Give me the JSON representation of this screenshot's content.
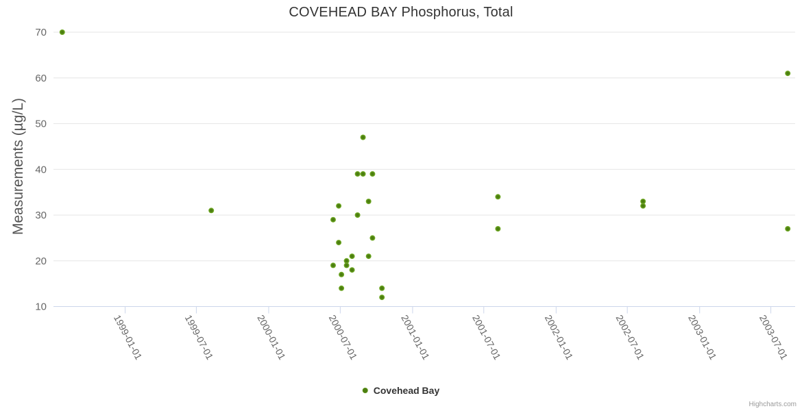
{
  "credits": {
    "label": "Highcharts.com"
  },
  "legend": {
    "label": "Covehead Bay"
  },
  "chart_data": {
    "type": "scatter",
    "title": "COVEHEAD BAY Phosphorus, Total",
    "xlabel": "",
    "ylabel": "Measurements (µg/L)",
    "ylim": [
      10,
      70
    ],
    "y_ticks": [
      10,
      20,
      30,
      40,
      50,
      60,
      70
    ],
    "x_ticks": [
      "1999-01-01",
      "1999-07-01",
      "2000-01-01",
      "2000-07-01",
      "2001-01-01",
      "2001-07-01",
      "2002-01-01",
      "2002-07-01",
      "2003-01-01",
      "2003-07-01"
    ],
    "grid": true,
    "legend_position": "bottom-center",
    "colors": {
      "grid_line": "#e6e6e6",
      "axis_line": "#ccd6eb",
      "tick_mark": "#ccd6eb",
      "tick_label": "#666666",
      "title_text": "#333333",
      "axis_title_text": "#555555",
      "credits_text": "#999999"
    },
    "series": [
      {
        "name": "Covehead Bay",
        "marker_color": "#7ab52c",
        "marker_core_color": "#4c7e10",
        "points": [
          {
            "date": "1998-07-25",
            "value": 70
          },
          {
            "date": "1999-08-08",
            "value": 31
          },
          {
            "date": "2000-06-13",
            "value": 29
          },
          {
            "date": "2000-06-13",
            "value": 19
          },
          {
            "date": "2000-06-27",
            "value": 32
          },
          {
            "date": "2000-06-27",
            "value": 24
          },
          {
            "date": "2000-07-04",
            "value": 17
          },
          {
            "date": "2000-07-04",
            "value": 14
          },
          {
            "date": "2000-07-17",
            "value": 20
          },
          {
            "date": "2000-07-17",
            "value": 19
          },
          {
            "date": "2000-07-31",
            "value": 21
          },
          {
            "date": "2000-07-31",
            "value": 18
          },
          {
            "date": "2000-08-14",
            "value": 39
          },
          {
            "date": "2000-08-14",
            "value": 30
          },
          {
            "date": "2000-08-28",
            "value": 47
          },
          {
            "date": "2000-08-28",
            "value": 39
          },
          {
            "date": "2000-09-11",
            "value": 33
          },
          {
            "date": "2000-09-11",
            "value": 21
          },
          {
            "date": "2000-09-21",
            "value": 39
          },
          {
            "date": "2000-09-21",
            "value": 25
          },
          {
            "date": "2000-10-15",
            "value": 14
          },
          {
            "date": "2000-10-15",
            "value": 12
          },
          {
            "date": "2001-08-06",
            "value": 34
          },
          {
            "date": "2001-08-06",
            "value": 27
          },
          {
            "date": "2002-08-10",
            "value": 33
          },
          {
            "date": "2002-08-10",
            "value": 32
          },
          {
            "date": "2003-08-13",
            "value": 61
          },
          {
            "date": "2003-08-13",
            "value": 27
          }
        ]
      }
    ]
  }
}
